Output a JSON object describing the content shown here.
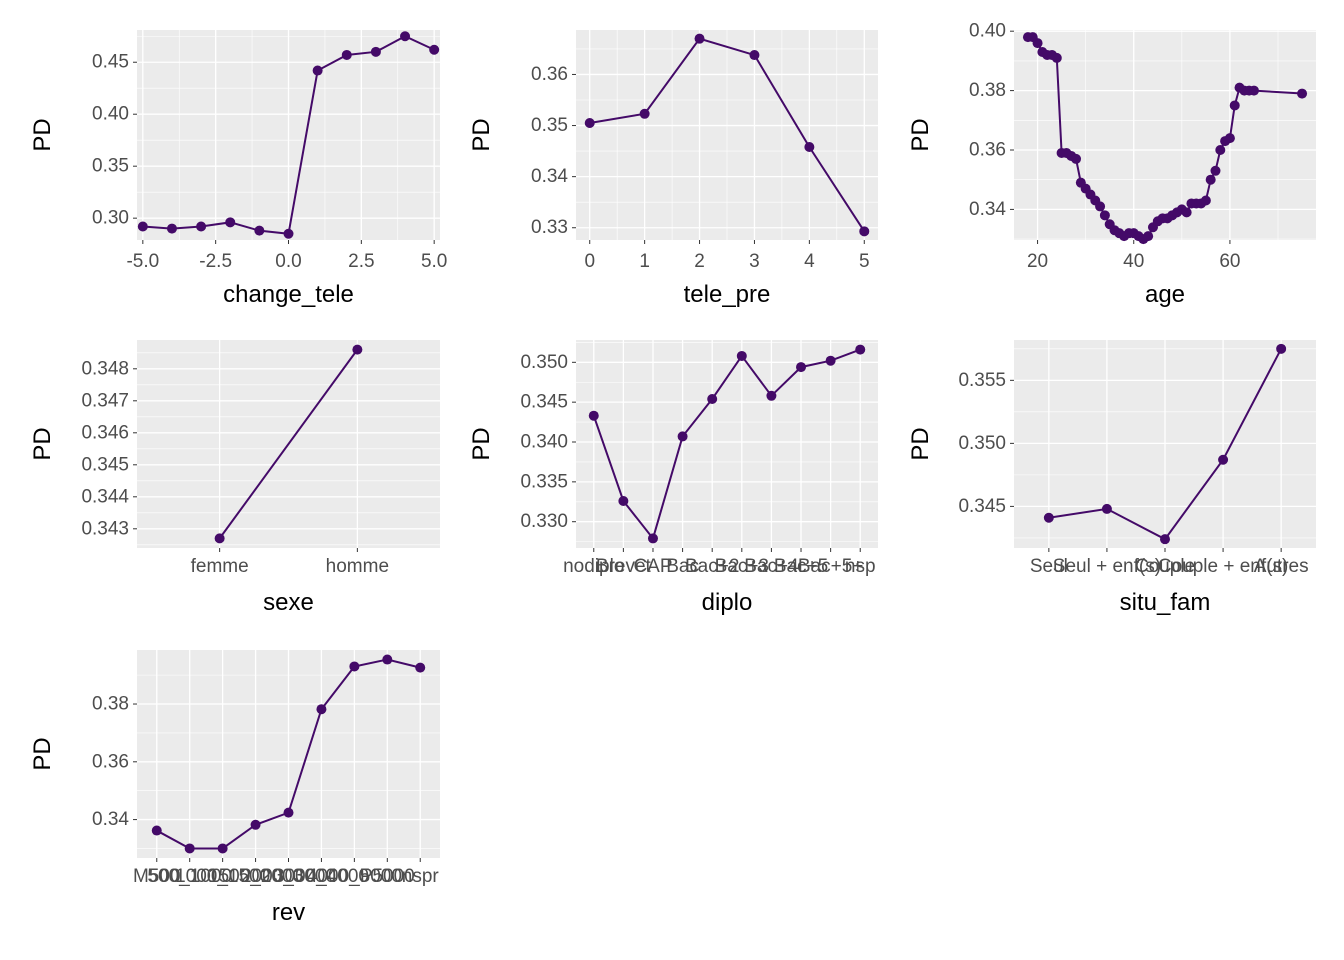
{
  "colors": {
    "panel_bg": "#EBEBEB",
    "grid_major": "#FFFFFF",
    "series": "#440A68",
    "tick_text": "#4D4D4D",
    "title_text": "#000000"
  },
  "chart_data": [
    {
      "type": "line",
      "title": "",
      "xlabel": "change_tele",
      "ylabel": "PD",
      "x_kind": "numeric",
      "x": [
        -5,
        -4,
        -3,
        -2,
        -1,
        0,
        1,
        2,
        3,
        4,
        5
      ],
      "values": [
        0.292,
        0.29,
        0.292,
        0.296,
        0.288,
        0.285,
        0.442,
        0.457,
        0.46,
        0.475,
        0.462
      ],
      "xlim": [
        -5.2,
        5.2
      ],
      "ylim": [
        0.279,
        0.481
      ],
      "xticks": [
        -5,
        -2.5,
        0,
        2.5,
        5
      ],
      "xtick_labels": [
        "-5.0",
        "-2.5",
        "0.0",
        "2.5",
        "5.0"
      ],
      "yticks": [
        0.3,
        0.35,
        0.4,
        0.45
      ],
      "ytick_labels": [
        "0.30",
        "0.35",
        "0.40",
        "0.45"
      ]
    },
    {
      "type": "line",
      "title": "",
      "xlabel": "tele_pre",
      "ylabel": "PD",
      "x_kind": "numeric",
      "x": [
        0,
        1,
        2,
        3,
        4,
        5
      ],
      "values": [
        0.3505,
        0.3523,
        0.367,
        0.3638,
        0.3458,
        0.3293
      ],
      "xlim": [
        -0.25,
        5.25
      ],
      "ylim": [
        0.3276,
        0.3687
      ],
      "xticks": [
        0,
        1,
        2,
        3,
        4,
        5
      ],
      "xtick_labels": [
        "0",
        "1",
        "2",
        "3",
        "4",
        "5"
      ],
      "yticks": [
        0.33,
        0.34,
        0.35,
        0.36
      ],
      "ytick_labels": [
        "0.33",
        "0.34",
        "0.35",
        "0.36"
      ]
    },
    {
      "type": "line",
      "title": "",
      "xlabel": "age",
      "ylabel": "PD",
      "x_kind": "numeric",
      "x": [
        18,
        19,
        20,
        21,
        22,
        23,
        24,
        25,
        26,
        27,
        28,
        29,
        30,
        31,
        32,
        33,
        34,
        35,
        36,
        37,
        38,
        39,
        40,
        41,
        42,
        43,
        44,
        45,
        46,
        47,
        48,
        49,
        50,
        51,
        52,
        53,
        54,
        55,
        56,
        57,
        58,
        59,
        60,
        61,
        62,
        63,
        64,
        65,
        75
      ],
      "values": [
        0.398,
        0.398,
        0.396,
        0.393,
        0.392,
        0.392,
        0.391,
        0.359,
        0.359,
        0.358,
        0.357,
        0.349,
        0.347,
        0.345,
        0.343,
        0.341,
        0.338,
        0.335,
        0.333,
        0.332,
        0.331,
        0.332,
        0.332,
        0.331,
        0.33,
        0.331,
        0.334,
        0.336,
        0.337,
        0.337,
        0.338,
        0.339,
        0.34,
        0.339,
        0.342,
        0.342,
        0.342,
        0.343,
        0.35,
        0.353,
        0.36,
        0.363,
        0.364,
        0.375,
        0.381,
        0.38,
        0.38,
        0.38,
        0.379
      ],
      "xlim": [
        15.1,
        77.9
      ],
      "ylim": [
        0.3297,
        0.4004
      ],
      "xticks": [
        20,
        40,
        60
      ],
      "xtick_labels": [
        "20",
        "40",
        "60"
      ],
      "yticks": [
        0.34,
        0.36,
        0.38,
        0.4
      ],
      "ytick_labels": [
        "0.34",
        "0.36",
        "0.38",
        "0.40"
      ]
    },
    {
      "type": "line",
      "title": "",
      "xlabel": "sexe",
      "ylabel": "PD",
      "x_kind": "categorical",
      "categories": [
        "femme",
        "homme"
      ],
      "values": [
        0.3427,
        0.3486
      ],
      "xlim": [
        0.4,
        2.6
      ],
      "ylim": [
        0.3424,
        0.3489
      ],
      "yticks": [
        0.343,
        0.344,
        0.345,
        0.346,
        0.347,
        0.348
      ],
      "ytick_labels": [
        "0.343",
        "0.344",
        "0.345",
        "0.346",
        "0.347",
        "0.348"
      ]
    },
    {
      "type": "line",
      "title": "",
      "xlabel": "diplo",
      "ylabel": "PD",
      "x_kind": "categorical",
      "categories": [
        "nodiplo",
        "Brevet",
        "CAP",
        "Bac",
        "Bac+2",
        "Bac+3",
        "Bac+4",
        "Bac+5",
        "Bac+5+",
        "nsp"
      ],
      "values": [
        0.3433,
        0.3326,
        0.3279,
        0.3407,
        0.3454,
        0.3508,
        0.3458,
        0.3494,
        0.3502,
        0.3516
      ],
      "xlim": [
        0.4,
        10.6
      ],
      "ylim": [
        0.3267,
        0.3528
      ],
      "yticks": [
        0.33,
        0.335,
        0.34,
        0.345,
        0.35
      ],
      "ytick_labels": [
        "0.330",
        "0.335",
        "0.340",
        "0.345",
        "0.350"
      ]
    },
    {
      "type": "line",
      "title": "",
      "xlabel": "situ_fam",
      "ylabel": "PD",
      "x_kind": "categorical",
      "categories": [
        "Seul",
        "Seul + enf(s)",
        "Couple",
        "Couple + enf(s)",
        "Autres"
      ],
      "values": [
        0.3441,
        0.3448,
        0.3424,
        0.3487,
        0.3575
      ],
      "xlim": [
        0.4,
        5.6
      ],
      "ylim": [
        0.3417,
        0.3582
      ],
      "yticks": [
        0.345,
        0.35,
        0.355
      ],
      "ytick_labels": [
        "0.345",
        "0.350",
        "0.355"
      ]
    },
    {
      "type": "line",
      "title": "",
      "xlabel": "rev",
      "ylabel": "PD",
      "x_kind": "categorical",
      "categories": [
        "M500",
        "500_1000",
        "1000_1500",
        "1500_2000",
        "2000_3000",
        "3000_4000",
        "4000_5000",
        "P5000",
        "nspr"
      ],
      "values": [
        0.3362,
        0.33,
        0.33,
        0.3382,
        0.3424,
        0.3782,
        0.393,
        0.3954,
        0.3926
      ],
      "xlim": [
        0.4,
        9.6
      ],
      "ylim": [
        0.3267,
        0.3987
      ],
      "yticks": [
        0.34,
        0.36,
        0.38
      ],
      "ytick_labels": [
        "0.34",
        "0.36",
        "0.38"
      ]
    }
  ]
}
